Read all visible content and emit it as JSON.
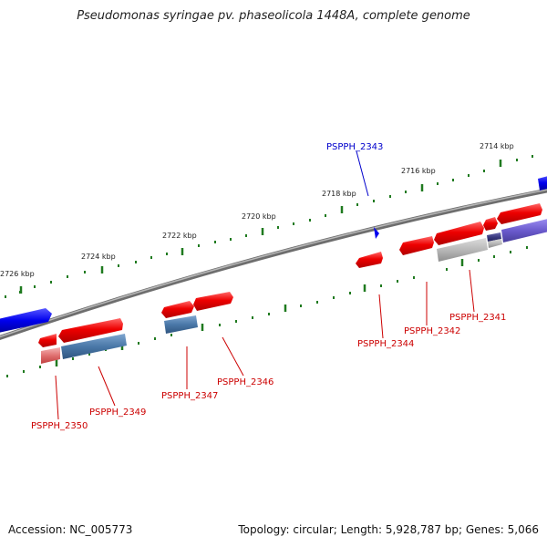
{
  "title": "Pseudomonas syringae pv. phaseolicola 1448A, complete genome",
  "footer": {
    "accession": "Accession: NC_005773",
    "summary": "Topology: circular; Length: 5,928,787 bp; Genes: 5,066"
  },
  "colors": {
    "backbone": "#8c8c8c",
    "tick": "#1f7a1f",
    "forward_gene": "#e60000",
    "reverse_gene": "#0000e6",
    "cds_blue": "#4f7fb0",
    "cds_gray": "#b4b4b4",
    "cds_purple": "#6a5acd",
    "label_red": "#cc0000",
    "label_blue": "#0000cc"
  },
  "scale": {
    "unit": "kbp",
    "ticks": [
      "2726 kbp",
      "2724 kbp",
      "2722 kbp",
      "2720 kbp",
      "2718 kbp",
      "2716 kbp",
      "2714 kbp"
    ]
  },
  "genes": [
    {
      "name": "PSPPH_2343",
      "strand": "forward-top",
      "color": "blue"
    },
    {
      "name": "PSPPH_2341",
      "color": "red"
    },
    {
      "name": "PSPPH_2342",
      "color": "red"
    },
    {
      "name": "PSPPH_2344",
      "color": "red"
    },
    {
      "name": "PSPPH_2346",
      "color": "red"
    },
    {
      "name": "PSPPH_2347",
      "color": "red"
    },
    {
      "name": "PSPPH_2349",
      "color": "red"
    },
    {
      "name": "PSPPH_2350",
      "color": "red"
    }
  ]
}
